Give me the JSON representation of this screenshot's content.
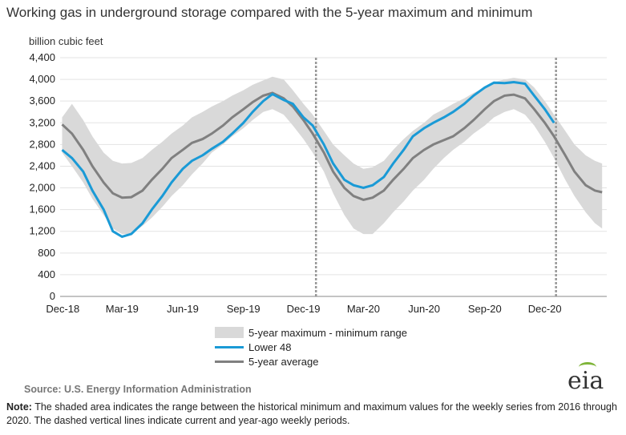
{
  "title": "Working gas in underground  storage compared with the 5-year maximum and minimum",
  "unit_label": "billion cubic feet",
  "legend": {
    "range": "5-year maximum - minimum range",
    "lower48": "Lower 48",
    "avg": "5-year average"
  },
  "source": "Source:  U.S. Energy Information Administration",
  "logo_text": "eia",
  "note_label": "Note:",
  "note_text": " The shaded area indicates the range between the historical minimum and maximum values for the weekly series from 2016 through 2020. The dashed vertical lines indicate current and year-ago weekly periods.",
  "colors": {
    "range": "#d9d9d9",
    "lower48": "#1a9ad6",
    "avg": "#808080",
    "dashed": "#999999"
  },
  "chart_data": {
    "type": "area",
    "x_ticks": [
      "Dec-18",
      "Mar-19",
      "Jun-19",
      "Sep-19",
      "Dec-19",
      "Mar-20",
      "Jun-20",
      "Sep-20",
      "Dec-20"
    ],
    "ylim": [
      0,
      4400
    ],
    "y_ticks": [
      0,
      400,
      800,
      1200,
      1600,
      2000,
      2400,
      2800,
      3200,
      3600,
      4000,
      4400
    ],
    "ylabel": "billion cubic feet",
    "dashed_lines": [
      "2019-12-20",
      "2020-12-18"
    ],
    "range_max": [
      [
        "2018-11-30",
        3300
      ],
      [
        "2018-12-15",
        3550
      ],
      [
        "2019-01-01",
        3250
      ],
      [
        "2019-01-15",
        2950
      ],
      [
        "2019-02-01",
        2650
      ],
      [
        "2019-02-15",
        2500
      ],
      [
        "2019-03-01",
        2450
      ],
      [
        "2019-03-15",
        2460
      ],
      [
        "2019-04-01",
        2550
      ],
      [
        "2019-04-15",
        2700
      ],
      [
        "2019-05-01",
        2850
      ],
      [
        "2019-05-15",
        3000
      ],
      [
        "2019-06-01",
        3150
      ],
      [
        "2019-06-15",
        3300
      ],
      [
        "2019-07-01",
        3400
      ],
      [
        "2019-07-15",
        3500
      ],
      [
        "2019-08-01",
        3600
      ],
      [
        "2019-08-15",
        3700
      ],
      [
        "2019-09-01",
        3800
      ],
      [
        "2019-09-15",
        3900
      ],
      [
        "2019-10-01",
        3980
      ],
      [
        "2019-10-15",
        4050
      ],
      [
        "2019-11-01",
        4000
      ],
      [
        "2019-11-15",
        3800
      ],
      [
        "2019-12-01",
        3550
      ],
      [
        "2019-12-15",
        3350
      ],
      [
        "2020-01-01",
        3050
      ],
      [
        "2020-01-15",
        2800
      ],
      [
        "2020-02-01",
        2600
      ],
      [
        "2020-02-15",
        2450
      ],
      [
        "2020-03-01",
        2350
      ],
      [
        "2020-03-15",
        2380
      ],
      [
        "2020-04-01",
        2500
      ],
      [
        "2020-04-15",
        2700
      ],
      [
        "2020-05-01",
        2900
      ],
      [
        "2020-05-15",
        3050
      ],
      [
        "2020-06-01",
        3200
      ],
      [
        "2020-06-15",
        3350
      ],
      [
        "2020-07-01",
        3450
      ],
      [
        "2020-07-15",
        3550
      ],
      [
        "2020-08-01",
        3650
      ],
      [
        "2020-08-15",
        3750
      ],
      [
        "2020-09-01",
        3850
      ],
      [
        "2020-09-15",
        3950
      ],
      [
        "2020-10-01",
        4000
      ],
      [
        "2020-10-15",
        4030
      ],
      [
        "2020-11-01",
        4000
      ],
      [
        "2020-11-15",
        3850
      ],
      [
        "2020-12-01",
        3600
      ],
      [
        "2020-12-15",
        3350
      ],
      [
        "2021-01-01",
        3050
      ],
      [
        "2021-01-15",
        2800
      ],
      [
        "2021-02-01",
        2600
      ],
      [
        "2021-02-15",
        2500
      ],
      [
        "2021-02-26",
        2450
      ]
    ],
    "range_min": [
      [
        "2018-11-30",
        2650
      ],
      [
        "2018-12-15",
        2400
      ],
      [
        "2019-01-01",
        2100
      ],
      [
        "2019-01-15",
        1800
      ],
      [
        "2019-02-01",
        1500
      ],
      [
        "2019-02-15",
        1250
      ],
      [
        "2019-03-01",
        1150
      ],
      [
        "2019-03-15",
        1150
      ],
      [
        "2019-04-01",
        1300
      ],
      [
        "2019-04-15",
        1450
      ],
      [
        "2019-05-01",
        1650
      ],
      [
        "2019-05-15",
        1850
      ],
      [
        "2019-06-01",
        2050
      ],
      [
        "2019-06-15",
        2250
      ],
      [
        "2019-07-01",
        2450
      ],
      [
        "2019-07-15",
        2650
      ],
      [
        "2019-08-01",
        2800
      ],
      [
        "2019-08-15",
        2950
      ],
      [
        "2019-09-01",
        3100
      ],
      [
        "2019-09-15",
        3250
      ],
      [
        "2019-10-01",
        3400
      ],
      [
        "2019-10-15",
        3450
      ],
      [
        "2019-11-01",
        3350
      ],
      [
        "2019-11-15",
        3150
      ],
      [
        "2019-12-01",
        2900
      ],
      [
        "2019-12-15",
        2650
      ],
      [
        "2020-01-01",
        2300
      ],
      [
        "2020-01-15",
        1900
      ],
      [
        "2020-02-01",
        1500
      ],
      [
        "2020-02-15",
        1250
      ],
      [
        "2020-03-01",
        1150
      ],
      [
        "2020-03-15",
        1150
      ],
      [
        "2020-04-01",
        1350
      ],
      [
        "2020-04-15",
        1550
      ],
      [
        "2020-05-01",
        1750
      ],
      [
        "2020-05-15",
        1950
      ],
      [
        "2020-06-01",
        2150
      ],
      [
        "2020-06-15",
        2350
      ],
      [
        "2020-07-01",
        2550
      ],
      [
        "2020-07-15",
        2700
      ],
      [
        "2020-08-01",
        2850
      ],
      [
        "2020-08-15",
        3000
      ],
      [
        "2020-09-01",
        3150
      ],
      [
        "2020-09-15",
        3300
      ],
      [
        "2020-10-01",
        3400
      ],
      [
        "2020-10-15",
        3450
      ],
      [
        "2020-11-01",
        3350
      ],
      [
        "2020-11-15",
        3150
      ],
      [
        "2020-12-01",
        2850
      ],
      [
        "2020-12-15",
        2550
      ],
      [
        "2021-01-01",
        2150
      ],
      [
        "2021-01-15",
        1850
      ],
      [
        "2021-02-01",
        1550
      ],
      [
        "2021-02-15",
        1350
      ],
      [
        "2021-02-26",
        1250
      ]
    ],
    "series": [
      {
        "name": "Lower 48",
        "points": [
          [
            "2018-11-30",
            2700
          ],
          [
            "2018-12-15",
            2550
          ],
          [
            "2019-01-01",
            2300
          ],
          [
            "2019-01-15",
            1950
          ],
          [
            "2019-02-01",
            1600
          ],
          [
            "2019-02-15",
            1200
          ],
          [
            "2019-03-01",
            1100
          ],
          [
            "2019-03-15",
            1150
          ],
          [
            "2019-04-01",
            1350
          ],
          [
            "2019-04-15",
            1600
          ],
          [
            "2019-05-01",
            1850
          ],
          [
            "2019-05-15",
            2100
          ],
          [
            "2019-06-01",
            2350
          ],
          [
            "2019-06-15",
            2500
          ],
          [
            "2019-07-01",
            2600
          ],
          [
            "2019-07-15",
            2720
          ],
          [
            "2019-08-01",
            2850
          ],
          [
            "2019-08-15",
            3000
          ],
          [
            "2019-09-01",
            3200
          ],
          [
            "2019-09-15",
            3400
          ],
          [
            "2019-10-01",
            3600
          ],
          [
            "2019-10-15",
            3730
          ],
          [
            "2019-11-01",
            3620
          ],
          [
            "2019-11-15",
            3550
          ],
          [
            "2019-12-01",
            3300
          ],
          [
            "2019-12-15",
            3150
          ],
          [
            "2020-01-01",
            2800
          ],
          [
            "2020-01-15",
            2450
          ],
          [
            "2020-02-01",
            2150
          ],
          [
            "2020-02-15",
            2050
          ],
          [
            "2020-03-01",
            2000
          ],
          [
            "2020-03-15",
            2050
          ],
          [
            "2020-04-01",
            2200
          ],
          [
            "2020-04-15",
            2450
          ],
          [
            "2020-05-01",
            2700
          ],
          [
            "2020-05-15",
            2950
          ],
          [
            "2020-06-01",
            3100
          ],
          [
            "2020-06-15",
            3200
          ],
          [
            "2020-07-01",
            3300
          ],
          [
            "2020-07-15",
            3400
          ],
          [
            "2020-08-01",
            3550
          ],
          [
            "2020-08-15",
            3700
          ],
          [
            "2020-09-01",
            3850
          ],
          [
            "2020-09-15",
            3940
          ],
          [
            "2020-10-01",
            3930
          ],
          [
            "2020-10-15",
            3950
          ],
          [
            "2020-11-01",
            3920
          ],
          [
            "2020-11-15",
            3700
          ],
          [
            "2020-12-01",
            3450
          ],
          [
            "2020-12-15",
            3200
          ]
        ]
      },
      {
        "name": "5-year average",
        "points": [
          [
            "2018-11-30",
            3170
          ],
          [
            "2018-12-15",
            3000
          ],
          [
            "2019-01-01",
            2700
          ],
          [
            "2019-01-15",
            2400
          ],
          [
            "2019-02-01",
            2100
          ],
          [
            "2019-02-15",
            1900
          ],
          [
            "2019-03-01",
            1820
          ],
          [
            "2019-03-15",
            1830
          ],
          [
            "2019-04-01",
            1950
          ],
          [
            "2019-04-15",
            2150
          ],
          [
            "2019-05-01",
            2350
          ],
          [
            "2019-05-15",
            2550
          ],
          [
            "2019-06-01",
            2700
          ],
          [
            "2019-06-15",
            2830
          ],
          [
            "2019-07-01",
            2900
          ],
          [
            "2019-07-15",
            3000
          ],
          [
            "2019-08-01",
            3150
          ],
          [
            "2019-08-15",
            3300
          ],
          [
            "2019-09-01",
            3450
          ],
          [
            "2019-09-15",
            3580
          ],
          [
            "2019-10-01",
            3700
          ],
          [
            "2019-10-15",
            3750
          ],
          [
            "2019-11-01",
            3650
          ],
          [
            "2019-11-15",
            3500
          ],
          [
            "2019-12-01",
            3250
          ],
          [
            "2019-12-15",
            3000
          ],
          [
            "2020-01-01",
            2650
          ],
          [
            "2020-01-15",
            2300
          ],
          [
            "2020-02-01",
            2000
          ],
          [
            "2020-02-15",
            1850
          ],
          [
            "2020-03-01",
            1780
          ],
          [
            "2020-03-15",
            1820
          ],
          [
            "2020-04-01",
            1950
          ],
          [
            "2020-04-15",
            2150
          ],
          [
            "2020-05-01",
            2350
          ],
          [
            "2020-05-15",
            2550
          ],
          [
            "2020-06-01",
            2700
          ],
          [
            "2020-06-15",
            2800
          ],
          [
            "2020-07-01",
            2880
          ],
          [
            "2020-07-15",
            2950
          ],
          [
            "2020-08-01",
            3100
          ],
          [
            "2020-08-15",
            3250
          ],
          [
            "2020-09-01",
            3450
          ],
          [
            "2020-09-15",
            3600
          ],
          [
            "2020-10-01",
            3700
          ],
          [
            "2020-10-15",
            3720
          ],
          [
            "2020-11-01",
            3650
          ],
          [
            "2020-11-15",
            3450
          ],
          [
            "2020-12-01",
            3200
          ],
          [
            "2020-12-15",
            2950
          ],
          [
            "2021-01-01",
            2600
          ],
          [
            "2021-01-15",
            2300
          ],
          [
            "2021-02-01",
            2050
          ],
          [
            "2021-02-15",
            1950
          ],
          [
            "2021-02-26",
            1920
          ]
        ]
      }
    ]
  }
}
